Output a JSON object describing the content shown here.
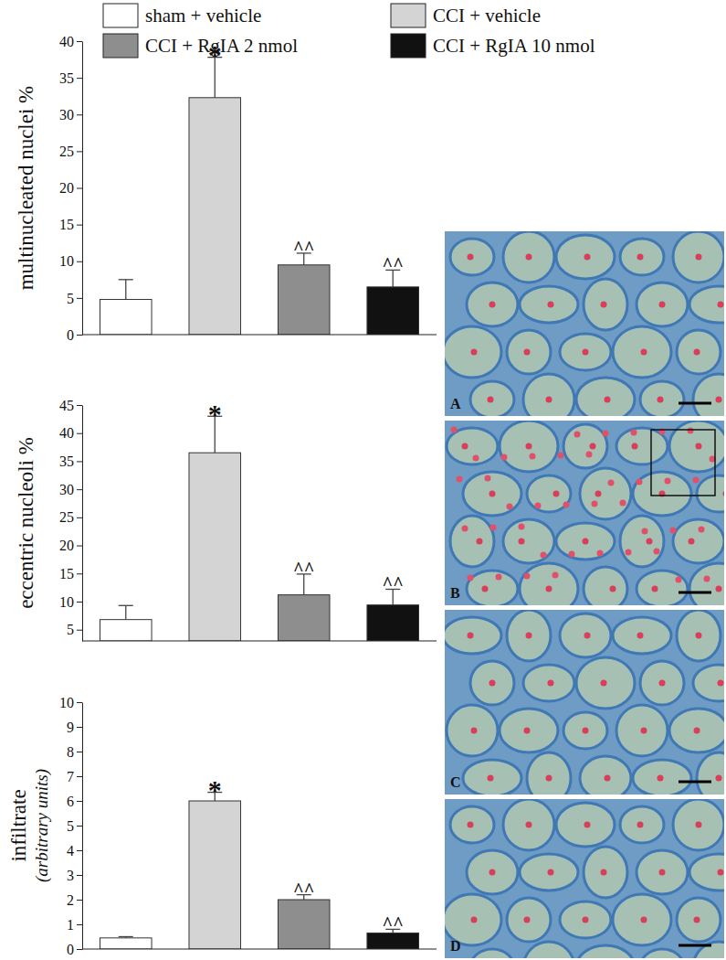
{
  "chart_data": [
    {
      "type": "bar",
      "y_label": "multinucleated nuclei %",
      "categories": [
        null,
        null,
        null,
        null
      ],
      "values": [
        4.8,
        32.3,
        9.5,
        6.5
      ],
      "errors": [
        2.7,
        5.5,
        1.6,
        2.3
      ],
      "annotations": [
        null,
        "*",
        "^^",
        "^^"
      ],
      "ylim": [
        0,
        40
      ],
      "yticks": [
        0,
        5,
        10,
        15,
        20,
        25,
        30,
        35,
        40
      ]
    },
    {
      "type": "bar",
      "y_label": "eccentric nucleoli %",
      "categories": [
        null,
        null,
        null,
        null
      ],
      "values": [
        6.8,
        36.5,
        11.2,
        9.4
      ],
      "errors": [
        2.5,
        6.5,
        3.7,
        2.8
      ],
      "annotations": [
        null,
        "*",
        "^^",
        "^^"
      ],
      "ylim": [
        3,
        45
      ],
      "yticks": [
        5,
        10,
        15,
        20,
        25,
        30,
        35,
        40,
        45
      ]
    },
    {
      "type": "bar",
      "y_label": "infiltrate",
      "y_label_note": "(arbitrary units)",
      "categories": [
        null,
        null,
        null,
        null
      ],
      "values": [
        0.45,
        6.0,
        2.0,
        0.65
      ],
      "errors": [
        0.05,
        0.35,
        0.2,
        0.15
      ],
      "annotations": [
        null,
        "*",
        "^^",
        "^^"
      ],
      "ylim": [
        0,
        10
      ],
      "yticks": [
        0,
        1,
        2,
        3,
        4,
        5,
        6,
        7,
        8,
        9,
        10
      ]
    }
  ],
  "legend_entries": [
    {
      "name": "sham + vehicle",
      "color": "#ffffff"
    },
    {
      "name": "CCI + vehicle",
      "color": "#d4d4d4"
    },
    {
      "name": "CCI + RgIA 2 nmol",
      "color": "#8e8e8e"
    },
    {
      "name": "CCI + RgIA 10 nmol",
      "color": "#111111"
    }
  ],
  "panels": [
    "A",
    "B",
    "C",
    "D"
  ]
}
